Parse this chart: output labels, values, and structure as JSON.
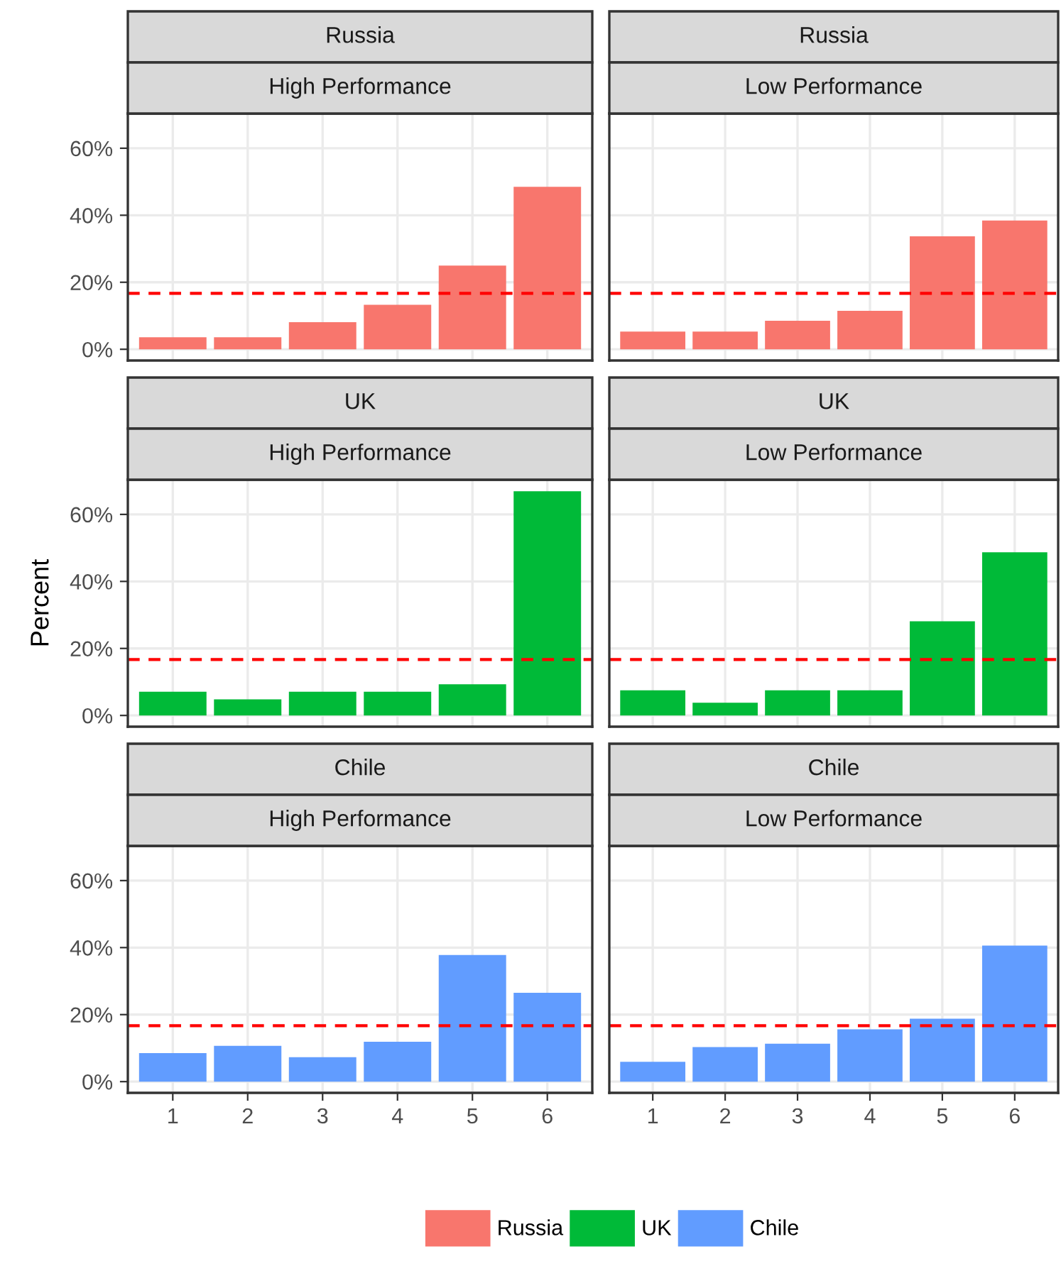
{
  "chart_data": [
    {
      "type": "bar",
      "title": "Russia",
      "subtitle": "High Performance",
      "categories": [
        "1",
        "2",
        "3",
        "4",
        "5",
        "6"
      ],
      "series": [
        {
          "name": "Russia",
          "color": "#f8766d",
          "values": [
            3.6,
            3.6,
            8.1,
            13.3,
            25,
            48.5
          ]
        }
      ],
      "ylim": [
        -3.35,
        70.35
      ],
      "yticks": [
        {
          "value": 0,
          "label": "0%"
        },
        {
          "value": 20,
          "label": "20%"
        },
        {
          "value": 40,
          "label": "40%"
        },
        {
          "value": 60,
          "label": "60%"
        }
      ],
      "ref_lines": [
        {
          "axis": "y",
          "value": 16.7,
          "color": "#ff0000",
          "line_style": "dashed"
        }
      ],
      "grid": true,
      "tick_labels": "y"
    },
    {
      "type": "bar",
      "title": "Russia",
      "subtitle": "Low Performance",
      "categories": [
        "1",
        "2",
        "3",
        "4",
        "5",
        "6"
      ],
      "series": [
        {
          "color": "#f8766d",
          "values": [
            5.3,
            5.3,
            8.5,
            11.5,
            33.7,
            38.4
          ]
        }
      ],
      "ylim": [
        -3.35,
        70.35
      ],
      "yticks": [
        0,
        20,
        40,
        60
      ],
      "ref_lines": [
        {
          "axis": "y",
          "value": 16.7,
          "color": "#ff0000",
          "line_style": "dashed"
        }
      ],
      "grid": true,
      "tick_labels": false
    },
    {
      "type": "bar",
      "title": "UK",
      "subtitle": "High Performance",
      "ylabel": "Percent",
      "categories": [
        "1",
        "2",
        "3",
        "4",
        "5",
        "6"
      ],
      "series": [
        {
          "name": "UK",
          "color": "#00ba38",
          "values": [
            7.1,
            4.8,
            7.1,
            7.1,
            9.3,
            66.9
          ]
        }
      ],
      "ylim": [
        -3.35,
        70.35
      ],
      "yticks": [
        {
          "value": 0,
          "label": "0%"
        },
        {
          "value": 20,
          "label": "20%"
        },
        {
          "value": 40,
          "label": "40%"
        },
        {
          "value": 60,
          "label": "60%"
        }
      ],
      "ref_lines": [
        {
          "axis": "y",
          "value": 16.7,
          "color": "#ff0000",
          "line_style": "dashed"
        }
      ],
      "grid": true,
      "tick_labels": "y"
    },
    {
      "type": "bar",
      "title": "UK",
      "subtitle": "Low Performance",
      "categories": [
        "1",
        "2",
        "3",
        "4",
        "5",
        "6"
      ],
      "series": [
        {
          "color": "#00ba38",
          "values": [
            7.5,
            3.8,
            7.5,
            7.5,
            28.1,
            48.7
          ]
        }
      ],
      "ylim": [
        -3.35,
        70.35
      ],
      "yticks": [
        0,
        20,
        40,
        60
      ],
      "ref_lines": [
        {
          "axis": "y",
          "value": 16.7,
          "color": "#ff0000",
          "line_style": "dashed"
        }
      ],
      "grid": true,
      "tick_labels": false
    },
    {
      "type": "bar",
      "title": "Chile",
      "subtitle": "High Performance",
      "categories": [
        "1",
        "2",
        "3",
        "4",
        "5",
        "6"
      ],
      "series": [
        {
          "name": "Chile",
          "color": "#619cff",
          "values": [
            8.5,
            10.7,
            7.3,
            11.9,
            37.8,
            26.5
          ]
        }
      ],
      "ylim": [
        -3.35,
        70.35
      ],
      "yticks": [
        {
          "value": 0,
          "label": "0%"
        },
        {
          "value": 20,
          "label": "20%"
        },
        {
          "value": 40,
          "label": "40%"
        },
        {
          "value": 60,
          "label": "60%"
        }
      ],
      "ref_lines": [
        {
          "axis": "y",
          "value": 16.7,
          "color": "#ff0000",
          "line_style": "dashed"
        }
      ],
      "grid": true,
      "legend": "bottom"
    },
    {
      "type": "bar",
      "title": "Chile",
      "subtitle": "Low Performance",
      "categories": [
        "1",
        "2",
        "3",
        "4",
        "5",
        "6"
      ],
      "series": [
        {
          "color": "#619cff",
          "values": [
            5.9,
            10.3,
            11.3,
            15.6,
            18.8,
            40.6
          ]
        }
      ],
      "ylim": [
        -3.35,
        70.35
      ],
      "yticks": [
        0,
        20,
        40,
        60
      ],
      "ref_lines": [
        {
          "axis": "y",
          "value": 16.7,
          "color": "#ff0000",
          "line_style": "dashed"
        }
      ],
      "grid": true,
      "tick_labels": "x"
    }
  ]
}
